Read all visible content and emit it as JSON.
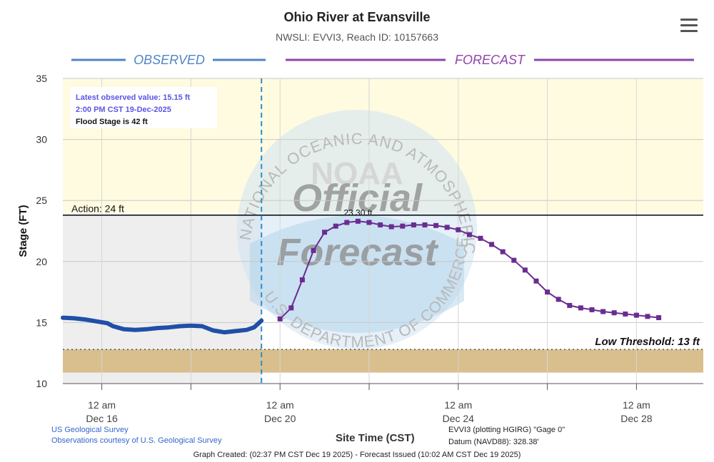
{
  "header": {
    "title": "Ohio River at Evansville",
    "subtitle": "NWSLI: EVVI3, Reach ID: 10157663",
    "menu_icon": "hamburger-menu-icon"
  },
  "chart_data": {
    "type": "line",
    "title": "Ohio River at Evansville",
    "subtitle": "NWSLI: EVVI3, Reach ID: 10157663",
    "ylabel": "Stage (FT)",
    "xlabel": "Site Time (CST)",
    "ylim": [
      10,
      35
    ],
    "xlim": [
      "2025-12-15 03:00",
      "2025-12-29 12:00"
    ],
    "yticks": [
      10,
      15,
      20,
      25,
      30,
      35
    ],
    "xticks": [
      {
        "t": "2025-12-16 00:00",
        "line1": "12 am",
        "line2": "Dec 16"
      },
      {
        "t": "2025-12-20 00:00",
        "line1": "12 am",
        "line2": "Dec 20"
      },
      {
        "t": "2025-12-24 00:00",
        "line1": "12 am",
        "line2": "Dec 24"
      },
      {
        "t": "2025-12-28 00:00",
        "line1": "12 am",
        "line2": "Dec 28"
      }
    ],
    "grid": true,
    "section_labels": {
      "observed": "OBSERVED",
      "forecast": "FORECAST"
    },
    "now": "2025-12-19 14:00",
    "thresholds": [
      {
        "name": "Action: 24 ft",
        "value": 23.8,
        "color": "#000000"
      },
      {
        "name": "Low Threshold: 13 ft",
        "value": 12.8,
        "color": "#555555"
      }
    ],
    "bands": [
      {
        "from": 24,
        "to": 35,
        "color": "#fffbe0"
      },
      {
        "from": 10,
        "to": 23.8,
        "color": "#eeeeee",
        "until_now": true
      },
      {
        "from": 10.9,
        "to": 12.8,
        "color": "#d9bf8e"
      }
    ],
    "info_box": {
      "line1": "Latest observed value: 15.15 ft",
      "line2": "2:00 PM CST 19-Dec-2025",
      "line3": "Flood Stage is 42 ft"
    },
    "peak_label": "23.30 ft",
    "series": [
      {
        "name": "Observed",
        "color": "#1f4fa8",
        "points": [
          [
            "2025-12-15 03:00",
            15.4
          ],
          [
            "2025-12-15 09:00",
            15.35
          ],
          [
            "2025-12-15 15:00",
            15.25
          ],
          [
            "2025-12-15 21:00",
            15.1
          ],
          [
            "2025-12-16 03:00",
            14.95
          ],
          [
            "2025-12-16 06:00",
            14.7
          ],
          [
            "2025-12-16 12:00",
            14.45
          ],
          [
            "2025-12-16 18:00",
            14.4
          ],
          [
            "2025-12-17 00:00",
            14.45
          ],
          [
            "2025-12-17 06:00",
            14.55
          ],
          [
            "2025-12-17 12:00",
            14.6
          ],
          [
            "2025-12-17 18:00",
            14.7
          ],
          [
            "2025-12-18 00:00",
            14.75
          ],
          [
            "2025-12-18 06:00",
            14.7
          ],
          [
            "2025-12-18 12:00",
            14.35
          ],
          [
            "2025-12-18 18:00",
            14.2
          ],
          [
            "2025-12-19 00:00",
            14.3
          ],
          [
            "2025-12-19 06:00",
            14.4
          ],
          [
            "2025-12-19 10:00",
            14.6
          ],
          [
            "2025-12-19 14:00",
            15.15
          ]
        ]
      },
      {
        "name": "Forecast",
        "color": "#6a2c91",
        "points": [
          [
            "2025-12-20 00:00",
            15.3
          ],
          [
            "2025-12-20 06:00",
            16.2
          ],
          [
            "2025-12-20 12:00",
            18.5
          ],
          [
            "2025-12-20 18:00",
            20.9
          ],
          [
            "2025-12-21 00:00",
            22.4
          ],
          [
            "2025-12-21 06:00",
            22.9
          ],
          [
            "2025-12-21 12:00",
            23.2
          ],
          [
            "2025-12-21 18:00",
            23.3
          ],
          [
            "2025-12-22 00:00",
            23.2
          ],
          [
            "2025-12-22 06:00",
            23.0
          ],
          [
            "2025-12-22 12:00",
            22.85
          ],
          [
            "2025-12-22 18:00",
            22.9
          ],
          [
            "2025-12-23 00:00",
            23.0
          ],
          [
            "2025-12-23 06:00",
            23.0
          ],
          [
            "2025-12-23 12:00",
            22.95
          ],
          [
            "2025-12-23 18:00",
            22.8
          ],
          [
            "2025-12-24 00:00",
            22.6
          ],
          [
            "2025-12-24 06:00",
            22.2
          ],
          [
            "2025-12-24 12:00",
            21.9
          ],
          [
            "2025-12-24 18:00",
            21.4
          ],
          [
            "2025-12-25 00:00",
            20.8
          ],
          [
            "2025-12-25 06:00",
            20.1
          ],
          [
            "2025-12-25 12:00",
            19.3
          ],
          [
            "2025-12-25 18:00",
            18.4
          ],
          [
            "2025-12-26 00:00",
            17.5
          ],
          [
            "2025-12-26 06:00",
            16.9
          ],
          [
            "2025-12-26 12:00",
            16.4
          ],
          [
            "2025-12-26 18:00",
            16.2
          ],
          [
            "2025-12-27 00:00",
            16.05
          ],
          [
            "2025-12-27 06:00",
            15.9
          ],
          [
            "2025-12-27 12:00",
            15.8
          ],
          [
            "2025-12-27 18:00",
            15.7
          ],
          [
            "2025-12-28 00:00",
            15.6
          ],
          [
            "2025-12-28 06:00",
            15.5
          ],
          [
            "2025-12-28 12:00",
            15.4
          ]
        ]
      }
    ],
    "watermark": {
      "center_text": "NOAA",
      "line1": "Official",
      "line2": "Forecast",
      "ring_top": "NATIONAL OCEANIC AND ATMOSPHERIC ADMINISTRATION",
      "ring_bottom": "U.S. DEPARTMENT OF COMMERCE"
    }
  },
  "footer": {
    "usgs_line1": "US Geological Survey",
    "usgs_line2": "Observations courtesy of U.S. Geological Survey",
    "x_title": "Site Time (CST)",
    "gage_line1": "EVVI3 (plotting HGIRG) \"Gage 0\"",
    "gage_line2": "Datum (NAVD88): 328.38'",
    "created": "Graph Created: (02:37 PM CST Dec 19 2025) - Forecast Issued (10:02 AM CST Dec 19 2025)"
  }
}
